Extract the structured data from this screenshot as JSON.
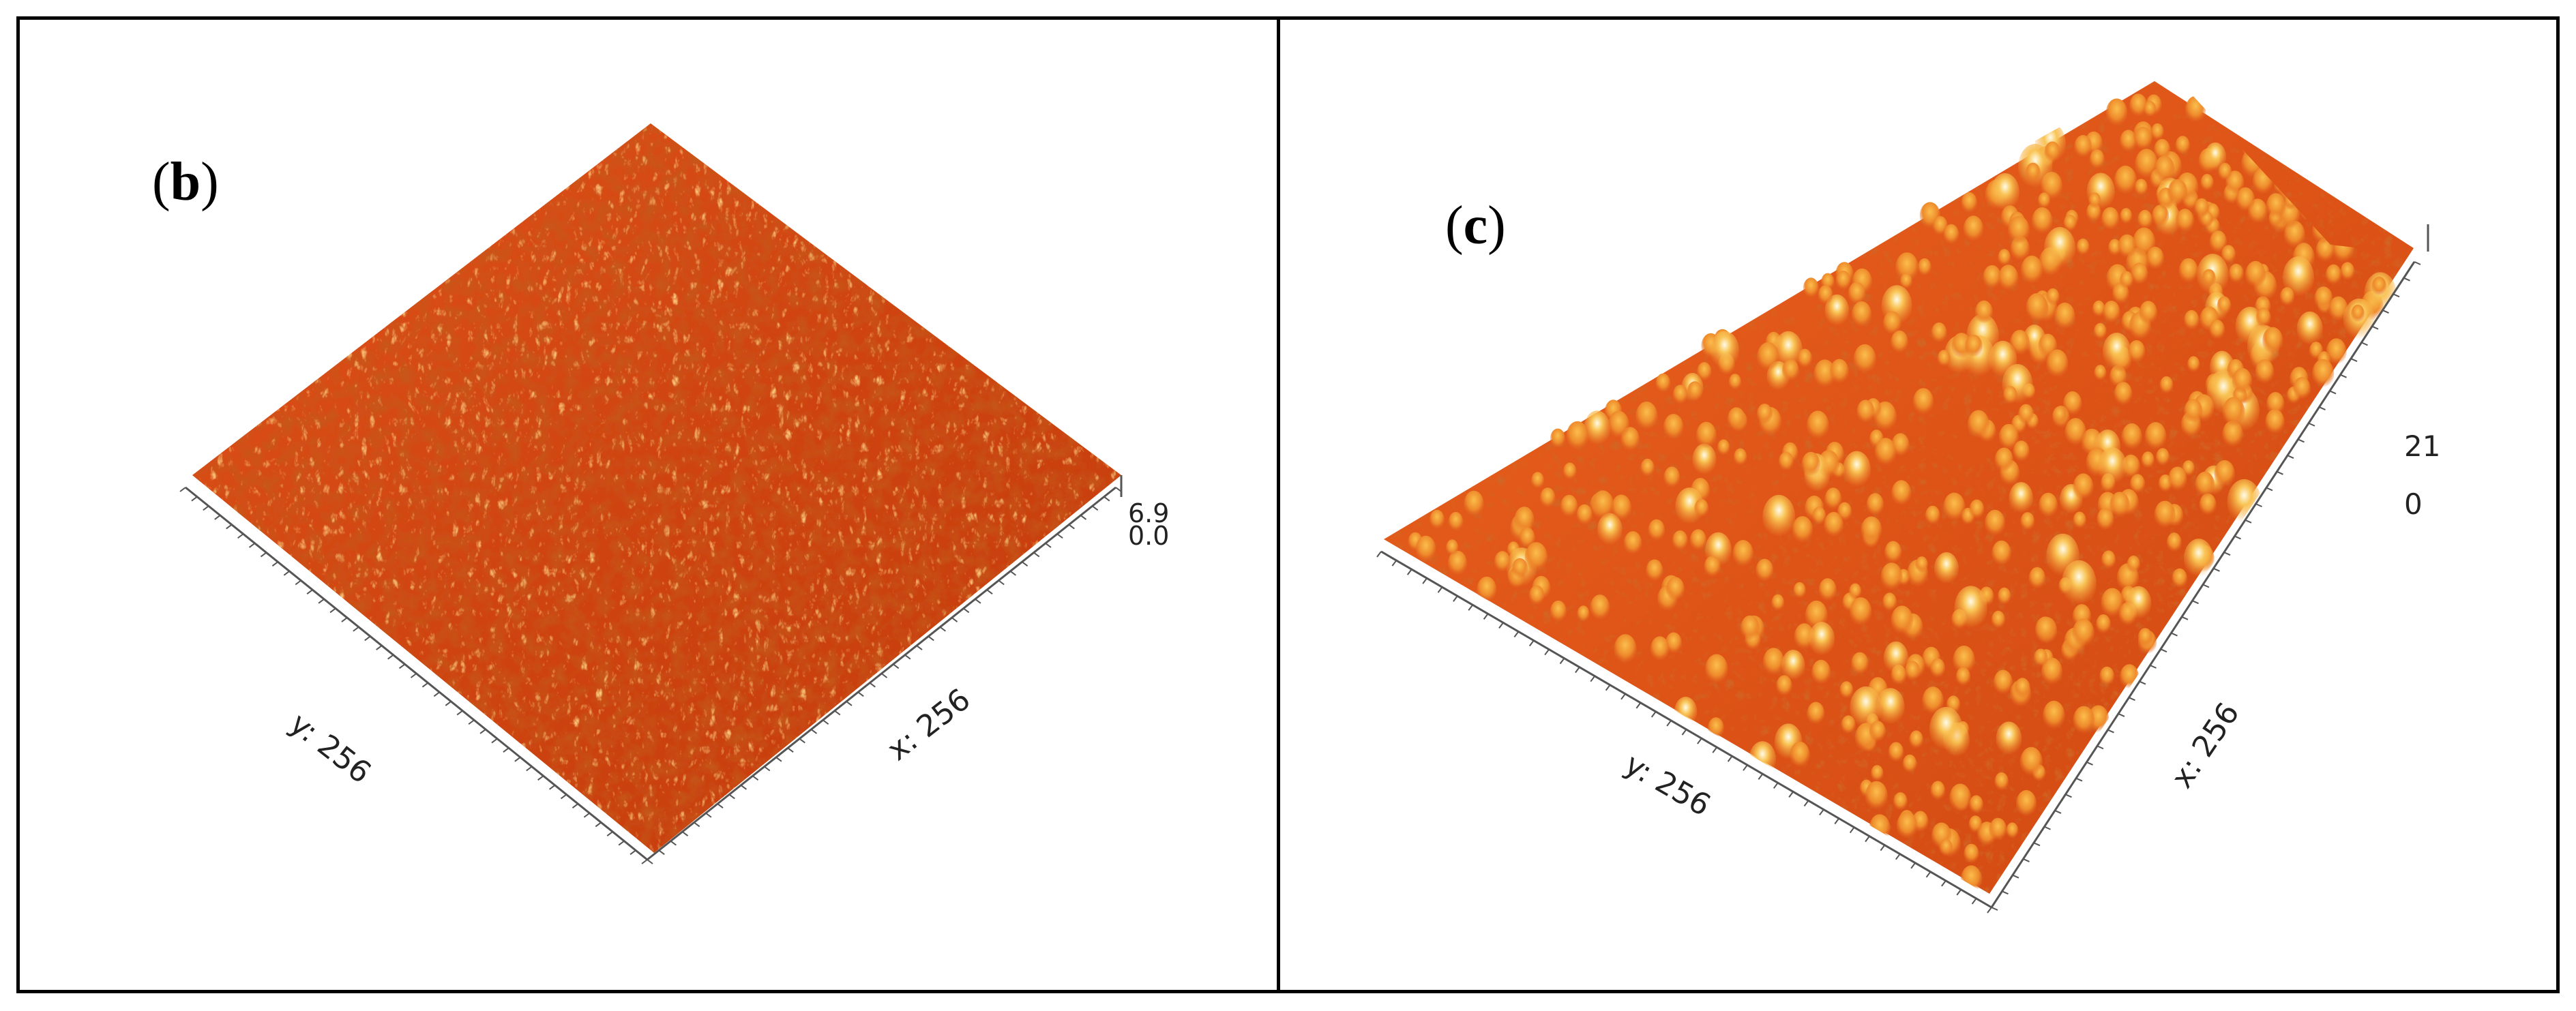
{
  "panels": [
    {
      "label": {
        "open": "(",
        "letter": "b",
        "close": ")"
      },
      "x_axis_label": "x: 256",
      "y_axis_label": "y: 256",
      "z_scale": {
        "max": "6.9",
        "min": "0.0"
      },
      "colors": {
        "dark": "#8f1d04",
        "mid": "#d4450f",
        "light": "#f4a038",
        "highlight": "#ffe9b0"
      }
    },
    {
      "label": {
        "open": "(",
        "letter": "c",
        "close": ")"
      },
      "x_axis_label": "x: 256",
      "y_axis_label": "y: 256",
      "z_scale": {
        "max": "21",
        "min": "0"
      },
      "colors": {
        "dark": "#a8290a",
        "mid": "#e5561a",
        "light": "#f7b23f",
        "highlight": "#fffdf2"
      }
    }
  ]
}
